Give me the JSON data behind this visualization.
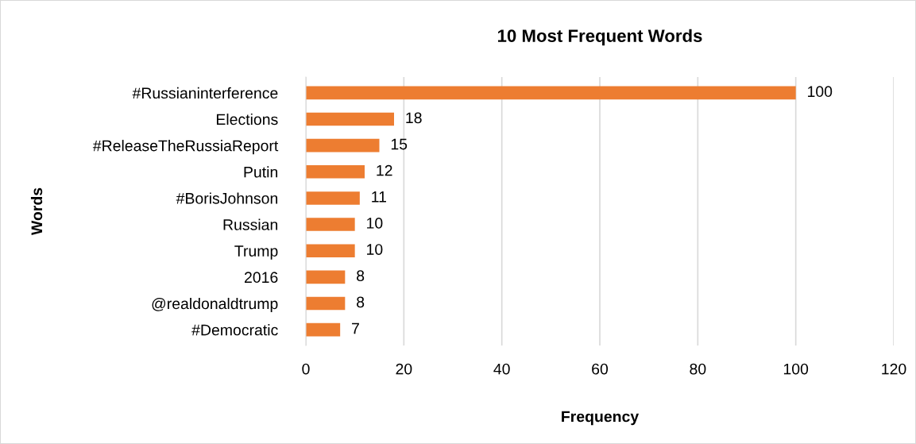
{
  "chart_data": {
    "type": "bar",
    "orientation": "horizontal",
    "title": "10 Most Frequent Words",
    "xlabel": "Frequency",
    "ylabel": "Words",
    "categories": [
      "#Russianinterference",
      "Elections",
      "#ReleaseTheRussiaReport",
      "Putin",
      "#BorisJohnson",
      "Russian",
      "Trump",
      "2016",
      "@realdonaldtrump",
      "#Democratic"
    ],
    "values": [
      100,
      18,
      15,
      12,
      11,
      10,
      10,
      8,
      8,
      7
    ],
    "color": "#ed7d31",
    "xlim": [
      0,
      120
    ],
    "xticks": [
      0,
      20,
      40,
      60,
      80,
      100,
      120
    ],
    "grid": "x",
    "data_labels": true
  }
}
